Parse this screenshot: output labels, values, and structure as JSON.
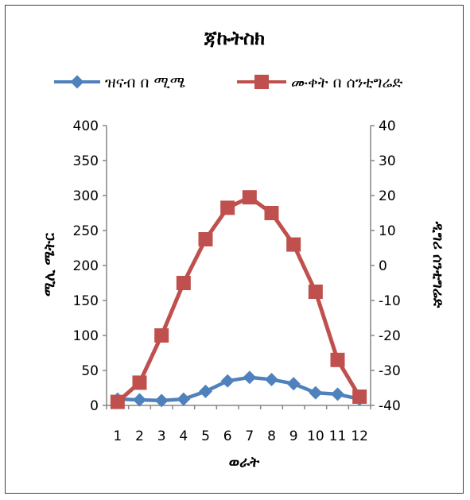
{
  "chart_data": {
    "type": "line",
    "title": "ጃኩትስክ",
    "xlabel": "ወራት",
    "ylabel": "ሚሊ ሜትር",
    "y2label": "ዲግሪ ሰንቲግሬድ",
    "categories": [
      "1",
      "2",
      "3",
      "4",
      "5",
      "6",
      "7",
      "8",
      "9",
      "10",
      "11",
      "12"
    ],
    "ylim": [
      0,
      400
    ],
    "yticks": [
      0,
      50,
      100,
      150,
      200,
      250,
      300,
      350,
      400
    ],
    "y2lim": [
      -40,
      40
    ],
    "y2ticks": [
      -40,
      -30,
      -20,
      -10,
      0,
      10,
      20,
      30,
      40
    ],
    "legend_position": "top",
    "grid": false,
    "series": [
      {
        "name": "ዝናብ በ ሚሜ",
        "axis": "left",
        "color": "#4F81BD",
        "marker": "diamond",
        "values": [
          9,
          8,
          7,
          9,
          20,
          35,
          40,
          37,
          31,
          18,
          16,
          9
        ]
      },
      {
        "name": "ሙቀት በ ሰንቲግሬድ",
        "axis": "right",
        "color": "#C0504D",
        "marker": "square",
        "values": [
          -39,
          -33.5,
          -20,
          -5,
          7.5,
          16.5,
          19.5,
          15,
          6,
          -7.5,
          -27,
          -37.5
        ]
      }
    ]
  }
}
